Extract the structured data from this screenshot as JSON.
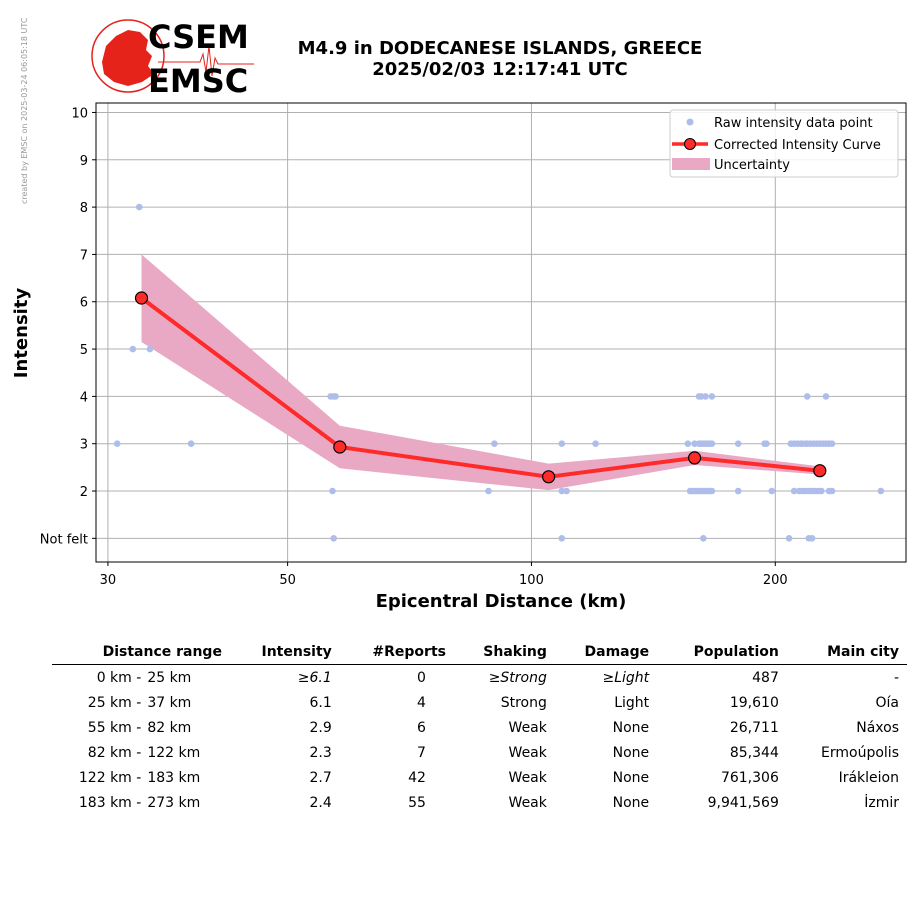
{
  "header": {
    "credit": "created by EMSC on 2025-03-24 06:05:18 UTC",
    "logo_line1": "CSEM",
    "logo_line2": "EMSC",
    "title_line1": "M4.9 in DODECANESE ISLANDS, GREECE",
    "title_line2": "2025/02/03 12:17:41 UTC"
  },
  "colors": {
    "raw_points": "#aebde9",
    "curve": "#ff2a2a",
    "marker_fill": "#ff2a2a",
    "uncertainty": "#e9a9c4",
    "grid": "#b0b0b0",
    "logo_red": "#e5231b"
  },
  "chart_data": {
    "type": "scatter",
    "xlabel": "Epicentral Distance (km)",
    "ylabel": "Intensity",
    "x_scale": "log",
    "xlim": [
      29,
      290
    ],
    "ylim": [
      0.5,
      10.2
    ],
    "x_ticks": [
      30,
      50,
      100,
      200
    ],
    "y_ticks": [
      {
        "v": 1,
        "label": "Not felt"
      },
      {
        "v": 2,
        "label": "2"
      },
      {
        "v": 3,
        "label": "3"
      },
      {
        "v": 4,
        "label": "4"
      },
      {
        "v": 5,
        "label": "5"
      },
      {
        "v": 6,
        "label": "6"
      },
      {
        "v": 7,
        "label": "7"
      },
      {
        "v": 8,
        "label": "8"
      },
      {
        "v": 9,
        "label": "9"
      },
      {
        "v": 10,
        "label": "10"
      }
    ],
    "grid": true,
    "legend_position": "top-right",
    "legend": [
      "Raw intensity data point",
      "Corrected Intensity Curve",
      "Uncertainty"
    ],
    "raw_points": [
      [
        32.8,
        8
      ],
      [
        32.2,
        5
      ],
      [
        33.8,
        5
      ],
      [
        30.8,
        3
      ],
      [
        38,
        3
      ],
      [
        56.5,
        4
      ],
      [
        57,
        4
      ],
      [
        57.3,
        4
      ],
      [
        56.8,
        2
      ],
      [
        57,
        1
      ],
      [
        90,
        3
      ],
      [
        88.5,
        2
      ],
      [
        109,
        3
      ],
      [
        120,
        3
      ],
      [
        109,
        2
      ],
      [
        110.5,
        2
      ],
      [
        109,
        1
      ],
      [
        156,
        3
      ],
      [
        159,
        3
      ],
      [
        161,
        3
      ],
      [
        162,
        3
      ],
      [
        163,
        3
      ],
      [
        164,
        3
      ],
      [
        165,
        3
      ],
      [
        166,
        3
      ],
      [
        167,
        3
      ],
      [
        161,
        4
      ],
      [
        162,
        4
      ],
      [
        164,
        4
      ],
      [
        167,
        4
      ],
      [
        157,
        2
      ],
      [
        158,
        2
      ],
      [
        159,
        2
      ],
      [
        160,
        2
      ],
      [
        161,
        2
      ],
      [
        162,
        2
      ],
      [
        163,
        2
      ],
      [
        164,
        2
      ],
      [
        165,
        2
      ],
      [
        166,
        2
      ],
      [
        167,
        2
      ],
      [
        180,
        3
      ],
      [
        180,
        2
      ],
      [
        194,
        3
      ],
      [
        195,
        3
      ],
      [
        198,
        2
      ],
      [
        163,
        1
      ],
      [
        209,
        3
      ],
      [
        211,
        3
      ],
      [
        213,
        3
      ],
      [
        215,
        3
      ],
      [
        216,
        3
      ],
      [
        218,
        3
      ],
      [
        219,
        3
      ],
      [
        221,
        3
      ],
      [
        223,
        3
      ],
      [
        225,
        3
      ],
      [
        227,
        3
      ],
      [
        229,
        3
      ],
      [
        231,
        3
      ],
      [
        233,
        3
      ],
      [
        235,
        3
      ],
      [
        219,
        4
      ],
      [
        231,
        4
      ],
      [
        211,
        2
      ],
      [
        214,
        2
      ],
      [
        216,
        2
      ],
      [
        218,
        2
      ],
      [
        220,
        2
      ],
      [
        222,
        2
      ],
      [
        224,
        2
      ],
      [
        226,
        2
      ],
      [
        228,
        2
      ],
      [
        233,
        2
      ],
      [
        235,
        2
      ],
      [
        270,
        2
      ],
      [
        208,
        1
      ],
      [
        220,
        1
      ],
      [
        222,
        1
      ]
    ],
    "series": [
      {
        "name": "Corrected Intensity Curve",
        "x": [
          33,
          58,
          105,
          159,
          227
        ],
        "y": [
          6.08,
          2.93,
          2.3,
          2.7,
          2.43
        ]
      }
    ],
    "uncertainty_band": {
      "x": [
        33,
        58,
        105,
        159,
        227
      ],
      "upper": [
        7.0,
        3.38,
        2.58,
        2.85,
        2.52
      ],
      "lower": [
        5.15,
        2.48,
        2.02,
        2.55,
        2.35
      ]
    }
  },
  "table": {
    "headers": [
      "Distance range",
      "Intensity",
      "#Reports",
      "Shaking",
      "Damage",
      "Population",
      "Main city"
    ],
    "rows": [
      {
        "from": "0 km -",
        "to": "25 km",
        "intensity": "≥6.1",
        "reports": "0",
        "shaking": "≥Strong",
        "damage": "≥Light",
        "population": "487",
        "city": "-",
        "italic": true
      },
      {
        "from": "25 km -",
        "to": "37 km",
        "intensity": "6.1",
        "reports": "4",
        "shaking": "Strong",
        "damage": "Light",
        "population": "19,610",
        "city": "Oía",
        "italic": false
      },
      {
        "from": "55 km -",
        "to": "82 km",
        "intensity": "2.9",
        "reports": "6",
        "shaking": "Weak",
        "damage": "None",
        "population": "26,711",
        "city": "Náxos",
        "italic": false
      },
      {
        "from": "82 km -",
        "to": "122 km",
        "intensity": "2.3",
        "reports": "7",
        "shaking": "Weak",
        "damage": "None",
        "population": "85,344",
        "city": "Ermoúpolis",
        "italic": false
      },
      {
        "from": "122 km -",
        "to": "183 km",
        "intensity": "2.7",
        "reports": "42",
        "shaking": "Weak",
        "damage": "None",
        "population": "761,306",
        "city": "Irákleion",
        "italic": false
      },
      {
        "from": "183 km -",
        "to": "273 km",
        "intensity": "2.4",
        "reports": "55",
        "shaking": "Weak",
        "damage": "None",
        "population": "9,941,569",
        "city": "İzmir",
        "italic": false
      }
    ]
  }
}
